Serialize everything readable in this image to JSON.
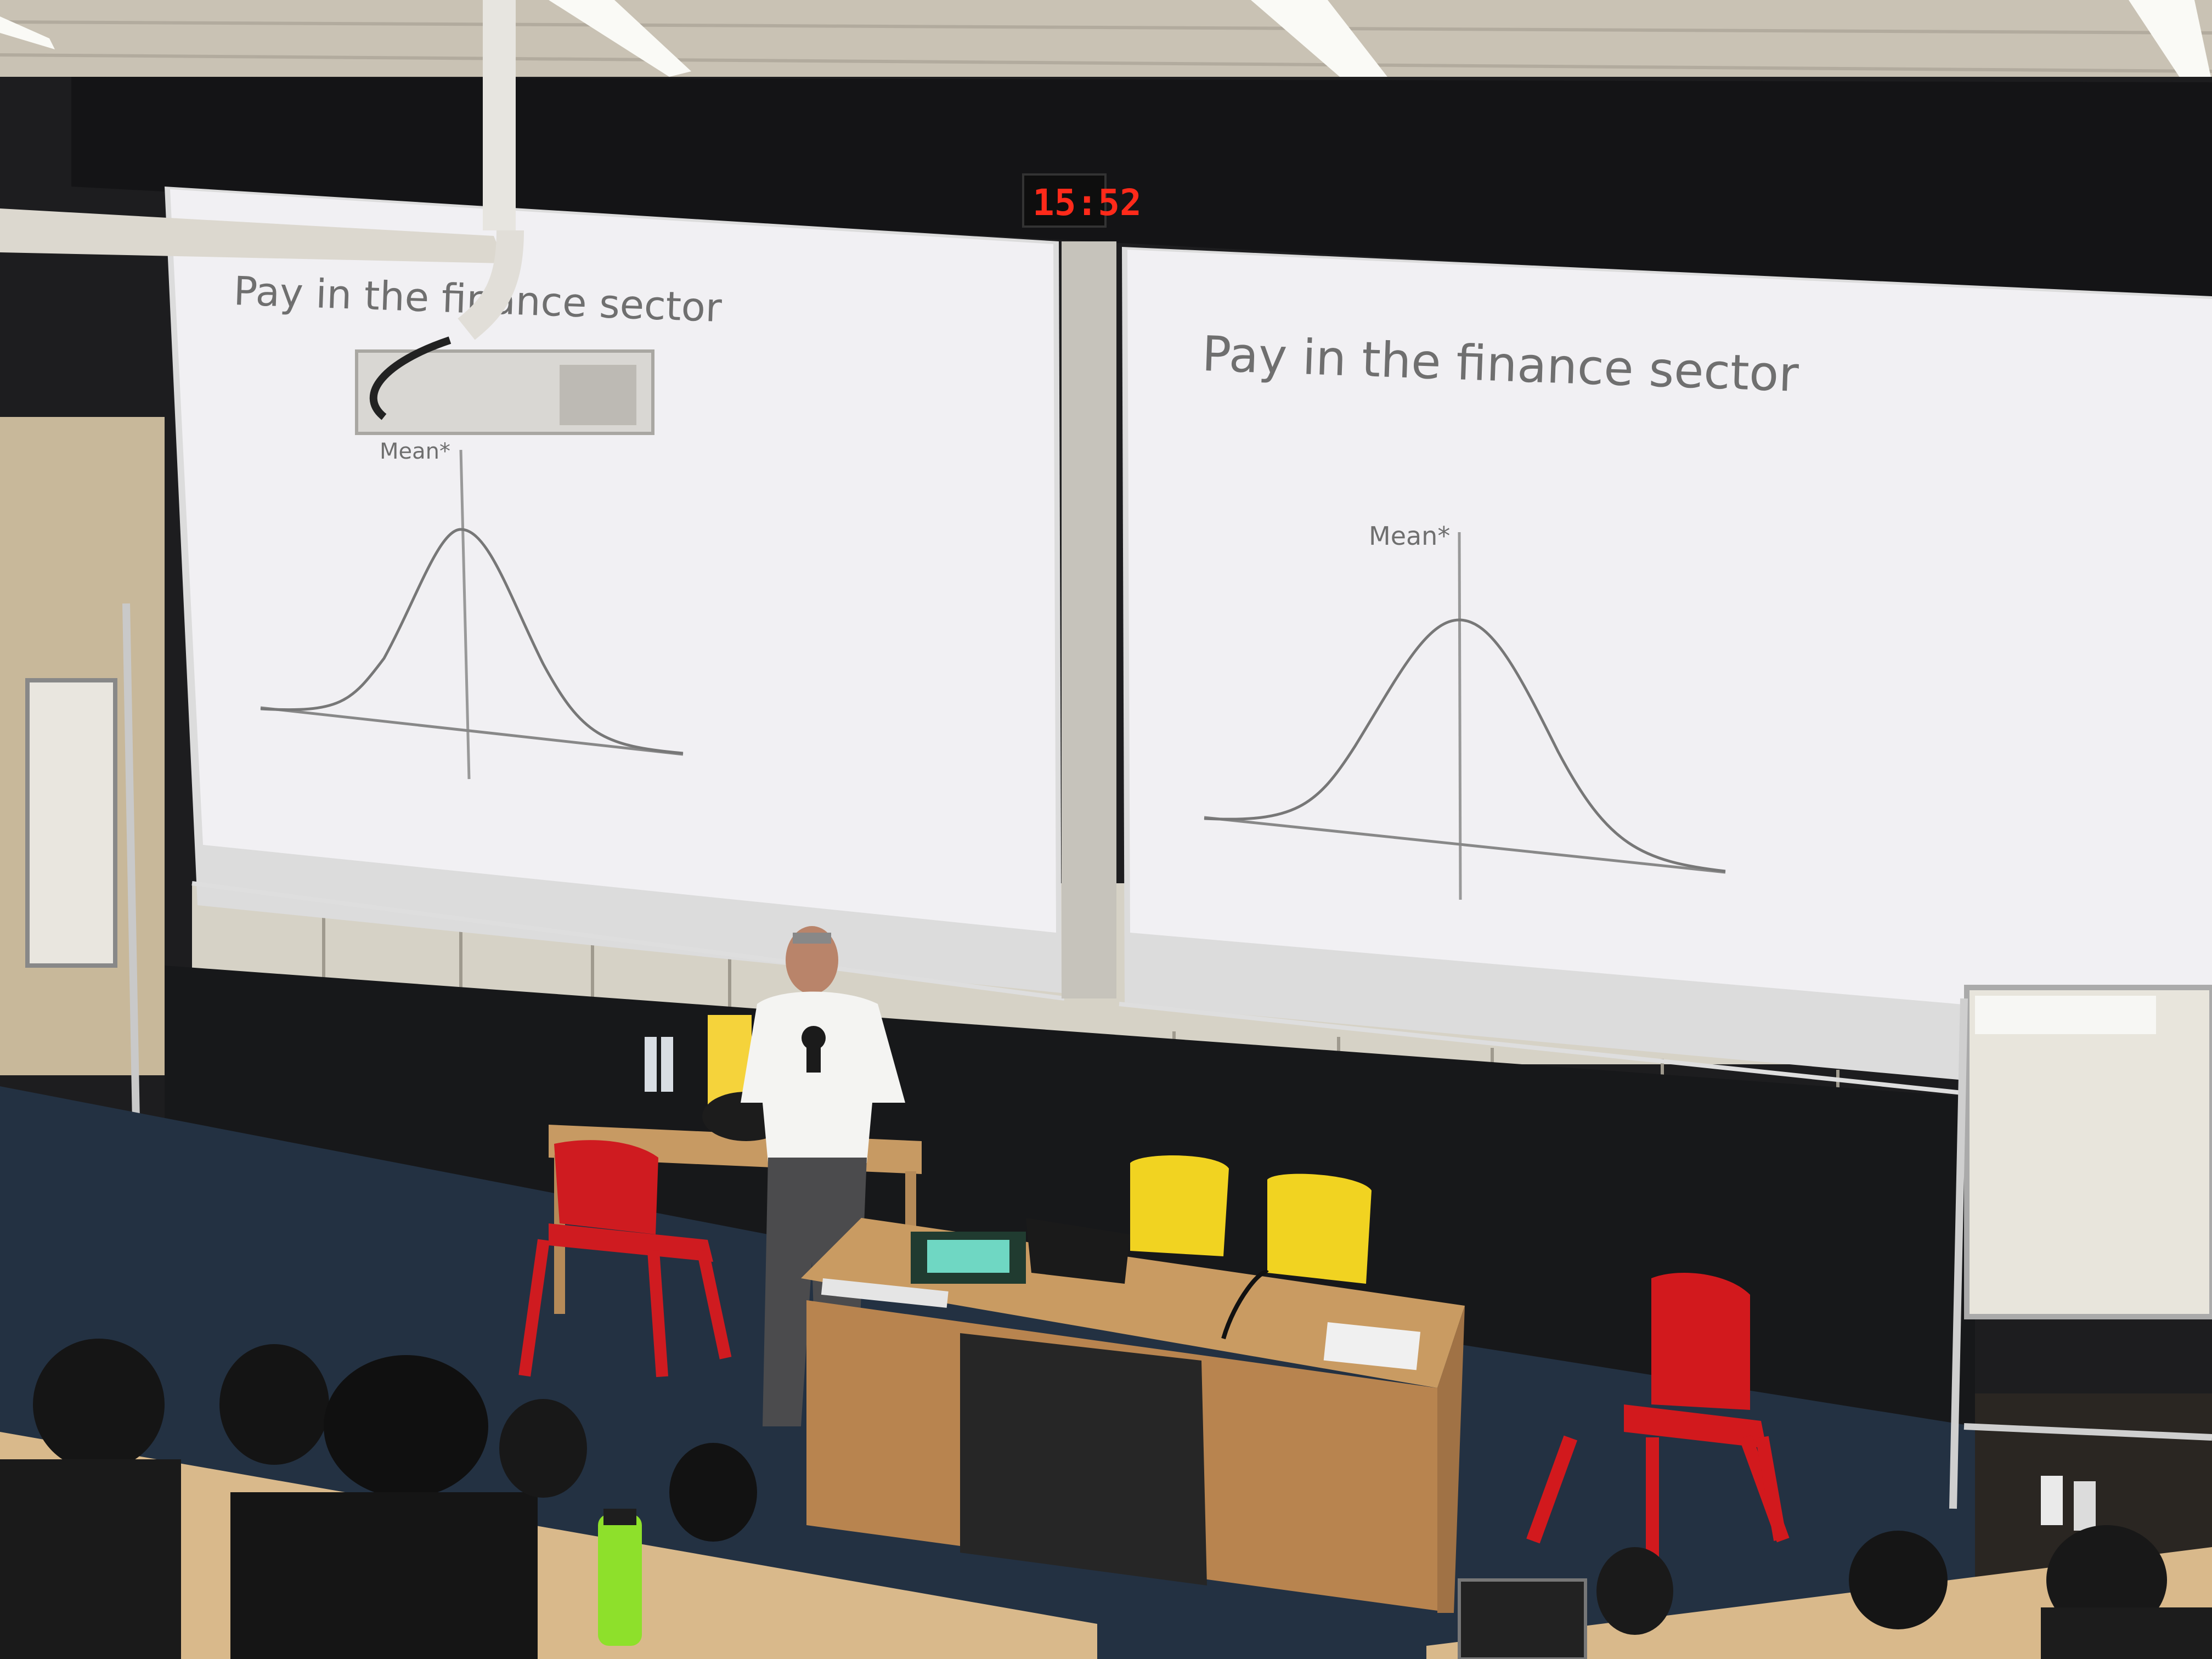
{
  "clock": {
    "time": "15:52"
  },
  "slides": [
    {
      "title": "Pay in the finance sector",
      "mean_label": "Mean*"
    },
    {
      "title": "Pay in the finance sector",
      "mean_label": "Mean*"
    }
  ],
  "colors": {
    "screen": "#f1f0f3",
    "wall": "#1c1c1e",
    "ceiling": "#bfb7a8",
    "floor": "#233142",
    "desk": "#b98a56",
    "red_chair": "#d01a1f",
    "yellow_chair": "#f0d322",
    "bottle": "#8ee02b"
  }
}
